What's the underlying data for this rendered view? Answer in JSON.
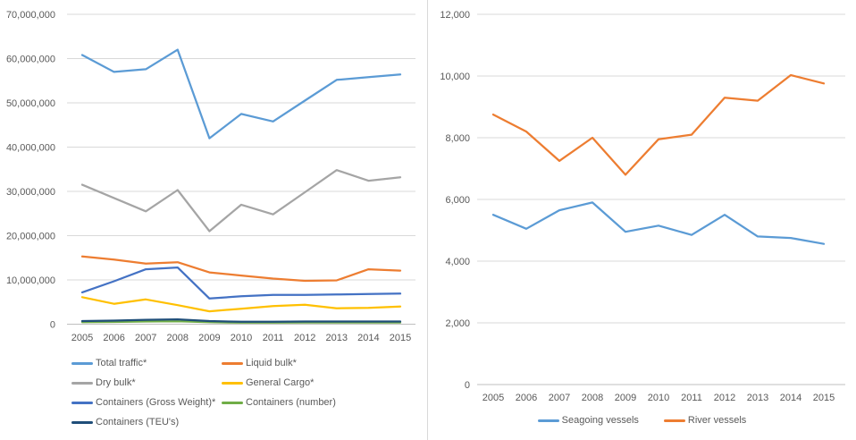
{
  "palette": {
    "grid": "#D9D9D9",
    "axis": "#BFBFBF",
    "tick_text": "#595959"
  },
  "chart_data": [
    {
      "type": "line",
      "title": "",
      "xlabel": "",
      "ylabel": "",
      "grid": true,
      "legend_position": "bottom-left",
      "y_axis": {
        "min": 0,
        "max": 70000000,
        "step": 10000000
      },
      "categories": [
        "2005",
        "2006",
        "2007",
        "2008",
        "2009",
        "2010",
        "2011",
        "2012",
        "2013",
        "2014",
        "2015"
      ],
      "series": [
        {
          "name": "Total traffic*",
          "color": "#5B9BD5",
          "values": [
            60800000,
            57000000,
            57600000,
            62000000,
            42000000,
            47500000,
            45800000,
            50500000,
            55200000,
            55800000,
            56400000
          ]
        },
        {
          "name": "Liquid bulk*",
          "color": "#ED7D31",
          "values": [
            15300000,
            14600000,
            13700000,
            14000000,
            11700000,
            11000000,
            10300000,
            9800000,
            9900000,
            12400000,
            12100000
          ]
        },
        {
          "name": "Dry bulk*",
          "color": "#A5A5A5",
          "values": [
            31500000,
            28500000,
            25500000,
            30300000,
            21000000,
            27000000,
            24800000,
            29800000,
            34800000,
            32400000,
            33200000
          ]
        },
        {
          "name": "General Cargo*",
          "color": "#FFC000",
          "values": [
            6100000,
            4600000,
            5600000,
            4300000,
            2900000,
            3500000,
            4100000,
            4400000,
            3600000,
            3700000,
            4000000
          ]
        },
        {
          "name": "Containers (Gross Weight)*",
          "color": "#4472C4",
          "values": [
            7200000,
            9700000,
            12400000,
            12800000,
            5800000,
            6300000,
            6600000,
            6600000,
            6700000,
            6800000,
            6900000
          ]
        },
        {
          "name": "Containers (number)",
          "color": "#70AD47",
          "values": [
            450000,
            500000,
            600000,
            650000,
            450000,
            350000,
            350000,
            380000,
            380000,
            380000,
            380000
          ]
        },
        {
          "name": "Containers (TEU's)",
          "color": "#1F4E79",
          "values": [
            700000,
            800000,
            1000000,
            1100000,
            700000,
            550000,
            550000,
            600000,
            600000,
            600000,
            600000
          ]
        }
      ]
    },
    {
      "type": "line",
      "title": "",
      "xlabel": "",
      "ylabel": "",
      "grid": true,
      "legend_position": "bottom-center",
      "y_axis": {
        "min": 0,
        "max": 12000,
        "step": 2000
      },
      "categories": [
        "2005",
        "2006",
        "2007",
        "2008",
        "2009",
        "2010",
        "2011",
        "2012",
        "2013",
        "2014",
        "2015"
      ],
      "series": [
        {
          "name": "Seagoing vessels",
          "color": "#5B9BD5",
          "values": [
            5500,
            5050,
            5650,
            5900,
            4950,
            5150,
            4850,
            5500,
            4800,
            4750,
            4560
          ]
        },
        {
          "name": "River vessels",
          "color": "#ED7D31",
          "values": [
            8750,
            8200,
            7250,
            8000,
            6800,
            7950,
            8100,
            9300,
            9200,
            10030,
            9760
          ]
        }
      ]
    }
  ]
}
